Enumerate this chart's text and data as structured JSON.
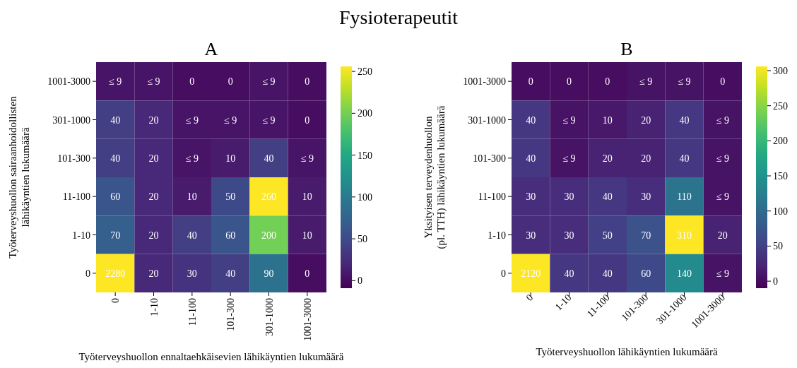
{
  "chart_data": [
    {
      "type": "heatmap",
      "title": "A",
      "annotations": [
        "Fysioterapeutit"
      ],
      "xlabel": "Työterveyshuollon ennaltaehkäisevien lähikäyntien lukumäärä",
      "ylabel": "Työterveyshuollon sairaanhoidollisten\nlähikäyntien lukumäärä",
      "categories": [
        "0",
        "1-10",
        "11-100",
        "101-300",
        "301-1000",
        "1001-3000"
      ],
      "y_categories": [
        "1001-3000",
        "301-1000",
        "101-300",
        "11-100",
        "1-10",
        "0"
      ],
      "cells": [
        [
          5,
          5,
          0,
          0,
          5,
          0
        ],
        [
          40,
          20,
          5,
          5,
          5,
          0
        ],
        [
          40,
          20,
          5,
          10,
          40,
          5
        ],
        [
          60,
          20,
          10,
          50,
          260,
          10
        ],
        [
          70,
          20,
          40,
          60,
          200,
          10
        ],
        [
          2280,
          20,
          30,
          40,
          90,
          0
        ]
      ],
      "cell_labels": [
        [
          "≤ 9",
          "≤ 9",
          "0",
          "0",
          "≤ 9",
          "0"
        ],
        [
          "40",
          "20",
          "≤ 9",
          "≤ 9",
          "≤ 9",
          "0"
        ],
        [
          "40",
          "20",
          "≤ 9",
          "10",
          "40",
          "≤ 9"
        ],
        [
          "60",
          "20",
          "10",
          "50",
          "260",
          "10"
        ],
        [
          "70",
          "20",
          "40",
          "60",
          "200",
          "10"
        ],
        [
          "2280",
          "20",
          "30",
          "40",
          "90",
          "0"
        ]
      ],
      "clim": [
        -9,
        256
      ],
      "cticks": [
        0,
        50,
        100,
        150,
        200,
        250
      ]
    },
    {
      "type": "heatmap",
      "title": "B",
      "xlabel": "Työterveyshuollon lähikäyntien lukumäärä",
      "ylabel": "Yksityisen terveydenhuollon\n(pl. TTH) lähikäyntien lukumäärä",
      "categories": [
        "0",
        "1-10",
        "11-100",
        "101-300",
        "301-1000",
        "1001-3000"
      ],
      "y_categories": [
        "1001-3000",
        "301-1000",
        "101-300",
        "11-100",
        "1-10",
        "0"
      ],
      "cells": [
        [
          0,
          0,
          0,
          5,
          5,
          0
        ],
        [
          40,
          5,
          10,
          20,
          40,
          5
        ],
        [
          40,
          5,
          20,
          20,
          40,
          5
        ],
        [
          30,
          30,
          40,
          30,
          110,
          5
        ],
        [
          30,
          30,
          50,
          70,
          310,
          20
        ],
        [
          2120,
          40,
          40,
          60,
          140,
          5
        ]
      ],
      "cell_labels": [
        [
          "0",
          "0",
          "0",
          "≤ 9",
          "≤ 9",
          "0"
        ],
        [
          "40",
          "≤ 9",
          "10",
          "20",
          "40",
          "≤ 9"
        ],
        [
          "40",
          "≤ 9",
          "20",
          "20",
          "40",
          "≤ 9"
        ],
        [
          "30",
          "30",
          "40",
          "30",
          "110",
          "≤ 9"
        ],
        [
          "30",
          "30",
          "50",
          "70",
          "310",
          "20"
        ],
        [
          "2120",
          "40",
          "40",
          "60",
          "140",
          "≤ 9"
        ]
      ],
      "clim": [
        -10,
        306
      ],
      "cticks": [
        0,
        50,
        100,
        150,
        200,
        250,
        300
      ]
    }
  ]
}
